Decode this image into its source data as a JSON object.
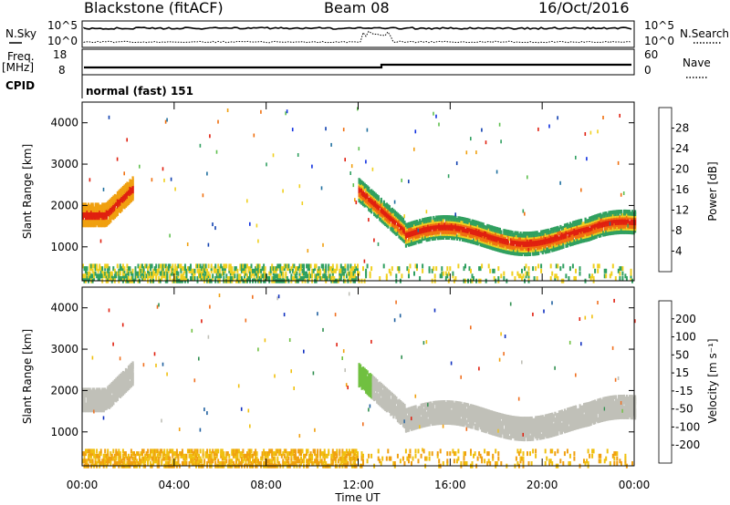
{
  "header": {
    "station": "Blackstone (fitACF)",
    "beam": "Beam 08",
    "date": "16/Oct/2016"
  },
  "summary_panels": {
    "nsky_label": "N.Sky",
    "nsearch_label": "N.Search",
    "noise_ticks": [
      "10^5",
      "10^0"
    ],
    "freq_label": "Freq.",
    "freq_unit": "[MHz]",
    "freq_ticks": [
      "18",
      "8"
    ],
    "nave_label": "Nave",
    "nave_ticks": [
      "60",
      "0"
    ],
    "cpid_label": "CPID",
    "cpid_value": "normal (fast) 151"
  },
  "chart_data": [
    {
      "type": "heatmap",
      "name": "power",
      "xlabel": "Time UT",
      "ylabel": "Slant Range [km]",
      "x_ticks": [
        "00:00",
        "04:00",
        "08:00",
        "12:00",
        "16:00",
        "20:00",
        "00:00"
      ],
      "xlim_hours": [
        0,
        24
      ],
      "y_ticks": [
        1000,
        2000,
        3000,
        4000
      ],
      "ylim": [
        180,
        4500
      ],
      "colorbar": {
        "label": "Power [dB]",
        "ticks": [
          4,
          8,
          12,
          16,
          20,
          24,
          28
        ],
        "range": [
          0,
          32
        ],
        "colors": [
          "#1030e0",
          "#1040b0",
          "#2070a0",
          "#30a060",
          "#60c050",
          "#f0d020",
          "#f0a010",
          "#f07010",
          "#e02010"
        ]
      }
    },
    {
      "type": "heatmap",
      "name": "velocity",
      "xlabel": "Time UT",
      "ylabel": "Slant Range [km]",
      "x_ticks": [
        "00:00",
        "04:00",
        "08:00",
        "12:00",
        "16:00",
        "20:00",
        "00:00"
      ],
      "xlim_hours": [
        0,
        24
      ],
      "y_ticks": [
        1000,
        2000,
        3000,
        4000
      ],
      "ylim": [
        180,
        4500
      ],
      "colorbar": {
        "label": "Velocity [m s⁻¹]",
        "ticks": [
          200,
          100,
          50,
          15,
          -15,
          -50,
          -100,
          -200
        ],
        "colors": [
          "#1030c0",
          "#2060a0",
          "#309050",
          "#70c040",
          "#c0c0b8",
          "#f0c010",
          "#f0a010",
          "#f07020",
          "#e02010"
        ]
      }
    }
  ]
}
